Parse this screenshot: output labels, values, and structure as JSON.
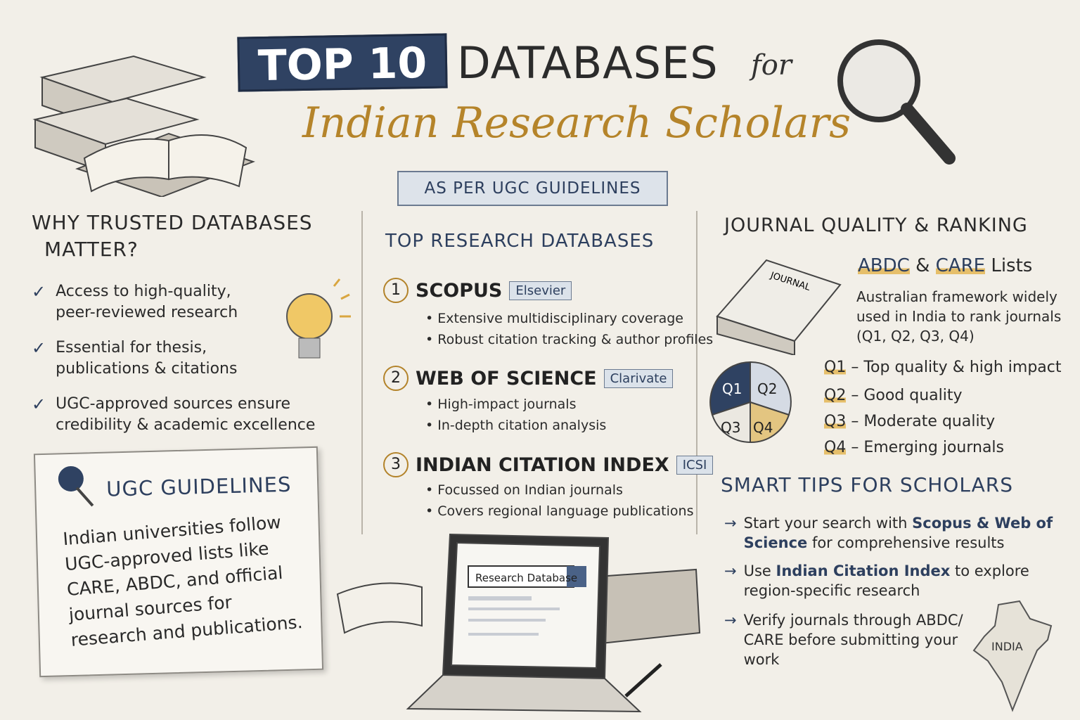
{
  "title": {
    "top10": "TOP 10",
    "databases": "DATABASES",
    "for": "for",
    "subtitle": "Indian Research Scholars",
    "badge": "AS PER UGC GUIDELINES"
  },
  "why": {
    "heading_line1": "WHY TRUSTED DATABASES",
    "heading_line2": "MATTER?",
    "items": [
      {
        "text": "Access to high-quality, peer-reviewed research"
      },
      {
        "text": "Essential for thesis, publications & citations"
      },
      {
        "text": "UGC-approved sources ensure credibility & academic excellence"
      }
    ],
    "check": "✓"
  },
  "ugc": {
    "title": "UGC GUIDELINES",
    "body": "Indian universities follow UGC-approved lists like CARE, ABDC, and official journal sources for research and publications."
  },
  "databases": {
    "heading": "TOP RESEARCH DATABASES",
    "items": [
      {
        "num": "1",
        "name": "SCOPUS",
        "publisher": "Elsevier",
        "bullets": [
          "• Extensive multidisciplinary coverage",
          "• Robust citation tracking & author profiles"
        ]
      },
      {
        "num": "2",
        "name": "WEB OF SCIENCE",
        "publisher": "Clarivate",
        "bullets": [
          "• High-impact journals",
          "• In-depth citation analysis"
        ]
      },
      {
        "num": "3",
        "name": "INDIAN CITATION INDEX",
        "publisher": "ICSI",
        "bullets": [
          "• Focussed on Indian journals",
          "• Covers regional language publications"
        ]
      }
    ]
  },
  "laptop": {
    "search_text": "Research Database"
  },
  "ranking": {
    "heading": "JOURNAL QUALITY & RANKING",
    "journal_label": "JOURNAL",
    "lists_a": "ABDC",
    "lists_amp": "&",
    "lists_b": "CARE",
    "lists_c": "Lists",
    "desc": "Australian framework widely used in India to rank journals (Q1, Q2, Q3, Q4)",
    "pie": [
      "Q1",
      "Q2",
      "Q3",
      "Q4"
    ],
    "quartiles": [
      {
        "q": "Q1",
        "text": "– Top quality & high impact"
      },
      {
        "q": "Q2",
        "text": "– Good quality"
      },
      {
        "q": "Q3",
        "text": "– Moderate quality"
      },
      {
        "q": "Q4",
        "text": "– Emerging journals"
      }
    ]
  },
  "tips": {
    "heading": "SMART TIPS FOR SCHOLARS",
    "arrow": "→",
    "items": [
      {
        "a": "Start your search with ",
        "b": "Scopus & Web of Science",
        "c": " for comprehensive results"
      },
      {
        "a": "Use ",
        "b": "Indian Citation Index",
        "c": " to explore region-specific research"
      },
      {
        "a": "Verify journals through ABDC/ CARE before submitting your work",
        "b": "",
        "c": ""
      }
    ]
  },
  "map_label": "INDIA",
  "colors": {
    "navy": "#2f4262",
    "gold": "#b3832a",
    "highlight": "#e6bf6a",
    "background": "#f2efe8"
  }
}
